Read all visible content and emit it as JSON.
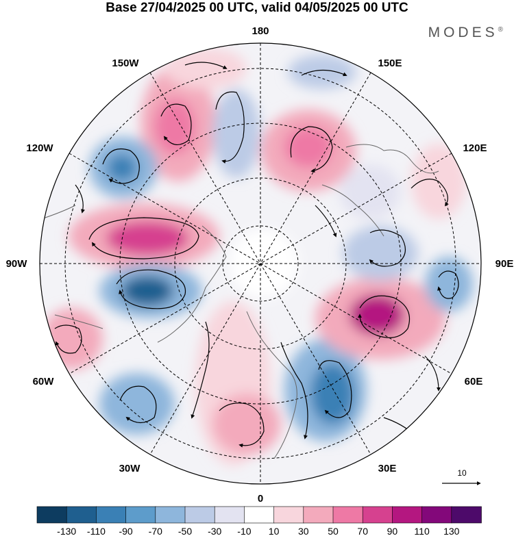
{
  "title": "Base 27/04/2025 00 UTC, valid 04/05/2025 00 UTC",
  "brand": "MODES",
  "brand_mark": "®",
  "longitude_labels": {
    "top": "180",
    "bottom": "0",
    "left": "90W",
    "right": "90E",
    "upper_left_1": "150W",
    "upper_left_2": "120W",
    "upper_right_1": "150E",
    "upper_right_2": "120E",
    "lower_left_1": "60W",
    "lower_left_2": "30W",
    "lower_right_1": "60E",
    "lower_right_2": "30E"
  },
  "reference_vector": {
    "label": "10",
    "value": 10
  },
  "colorbar": {
    "tick_labels": [
      "-130",
      "-110",
      "-90",
      "-70",
      "-50",
      "-30",
      "-10",
      "10",
      "30",
      "50",
      "70",
      "90",
      "110",
      "130"
    ],
    "colors": [
      "#0d3c60",
      "#1f5f8f",
      "#3a80b5",
      "#5d9ccb",
      "#8eb6dc",
      "#bccbe6",
      "#e3e3f1",
      "#ffffff",
      "#f8d6dd",
      "#f3aabc",
      "#ee79a5",
      "#d6418f",
      "#b41780",
      "#83087a",
      "#4d0a6a"
    ]
  },
  "colors": {
    "land_shade": "#dcdcdc",
    "coast": "#666666",
    "streamline": "#000000"
  }
}
